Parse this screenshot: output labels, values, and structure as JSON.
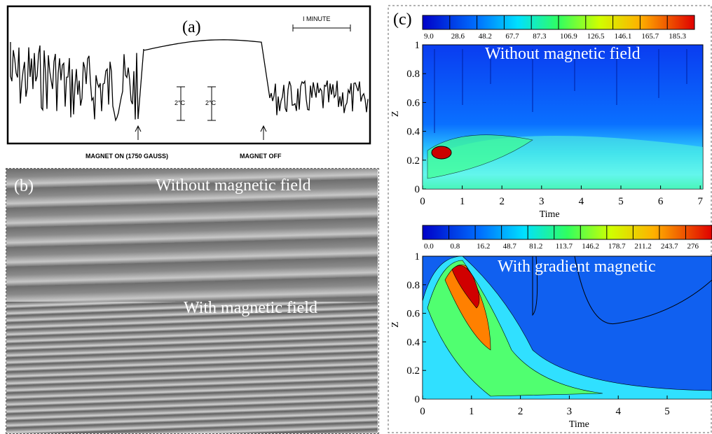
{
  "panel_a": {
    "label": "(a)",
    "scale": "I MINUTE",
    "temp_marks": [
      "2°C",
      "2°C"
    ],
    "annotations": [
      "MAGNET ON (1750 GAUSS)",
      "MAGNET OFF"
    ]
  },
  "panel_b": {
    "label": "(b)",
    "top_text": "Without magnetic field",
    "bottom_text": "With magnetic field"
  },
  "panel_c": {
    "label": "(c)",
    "plots": [
      {
        "colorbar_labels": [
          "9.0",
          "28.6",
          "48.2",
          "67.7",
          "87.3",
          "106.9",
          "126.5",
          "146.1",
          "165.7",
          "185.3"
        ],
        "xticks": [
          "0",
          "1",
          "2",
          "3",
          "4",
          "5",
          "6",
          "7"
        ],
        "yticks": [
          "0",
          "0.2",
          "0.4",
          "0.6",
          "0.8",
          "1"
        ],
        "xlabel": "Time",
        "ylabel": "Z",
        "text": "Without magnetic field"
      },
      {
        "colorbar_labels": [
          "0.0",
          "0.8",
          "16.2",
          "48.7",
          "81.2",
          "113.7",
          "146.2",
          "178.7",
          "211.2",
          "243.7",
          "276"
        ],
        "xticks": [
          "0",
          "1",
          "2",
          "3",
          "4",
          "5"
        ],
        "yticks": [
          "0",
          "0.2",
          "0.4",
          "0.6",
          "0.8",
          "1"
        ],
        "xlabel": "Time",
        "ylabel": "Z",
        "text": "With gradient magnetic"
      }
    ]
  }
}
